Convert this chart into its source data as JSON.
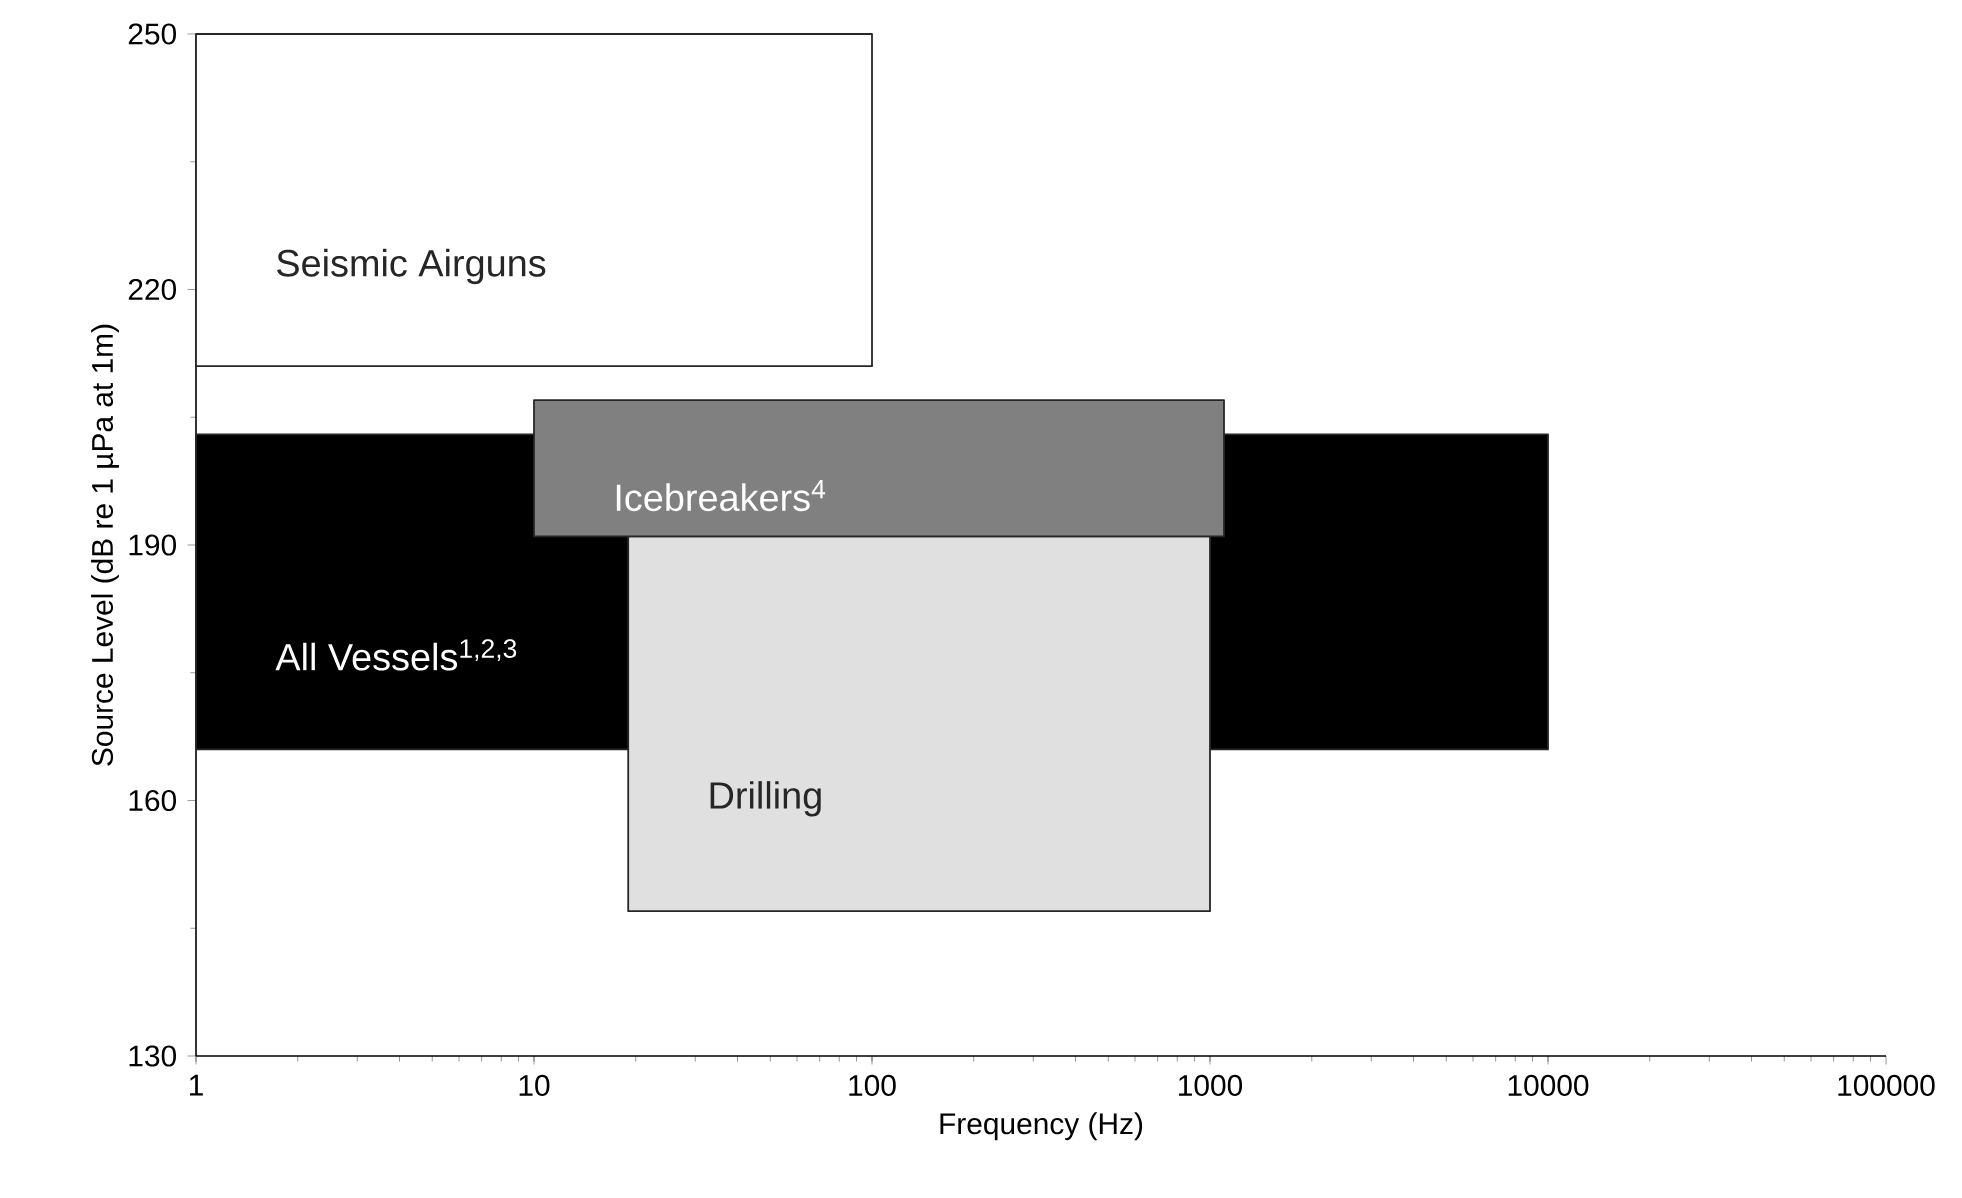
{
  "chart_data": {
    "type": "area",
    "xlabel": "Frequency (Hz)",
    "ylabel": "Source Level (dB re 1 µPa at 1m)",
    "log": "x",
    "xlim": [
      1,
      100000
    ],
    "ylim": [
      130,
      250
    ],
    "xticks": [
      1,
      10,
      100,
      1000,
      10000,
      100000
    ],
    "yticks": [
      130,
      160,
      190,
      220,
      250
    ],
    "grid": false,
    "series": [
      {
        "name": "Seismic Airguns",
        "color": "#ffffff",
        "x": [
          1,
          1,
          100,
          100
        ],
        "values": [
          211,
          250,
          250,
          211
        ]
      },
      {
        "name": "All Vessels$^{1,2,3}$",
        "color": "#000000",
        "x": [
          1,
          1,
          10000,
          10000
        ],
        "values": [
          166,
          203,
          203,
          166
        ]
      },
      {
        "name": "Drilling",
        "color": "#e0e0e0",
        "x": [
          19,
          19,
          1000,
          1000
        ],
        "values": [
          147,
          191,
          191,
          147
        ]
      },
      {
        "name": "Icebreakers$^{4}$",
        "color": "#808080",
        "x": [
          10,
          10,
          1100,
          1100
        ],
        "values": [
          191,
          207,
          207,
          191
        ]
      }
    ]
  }
}
